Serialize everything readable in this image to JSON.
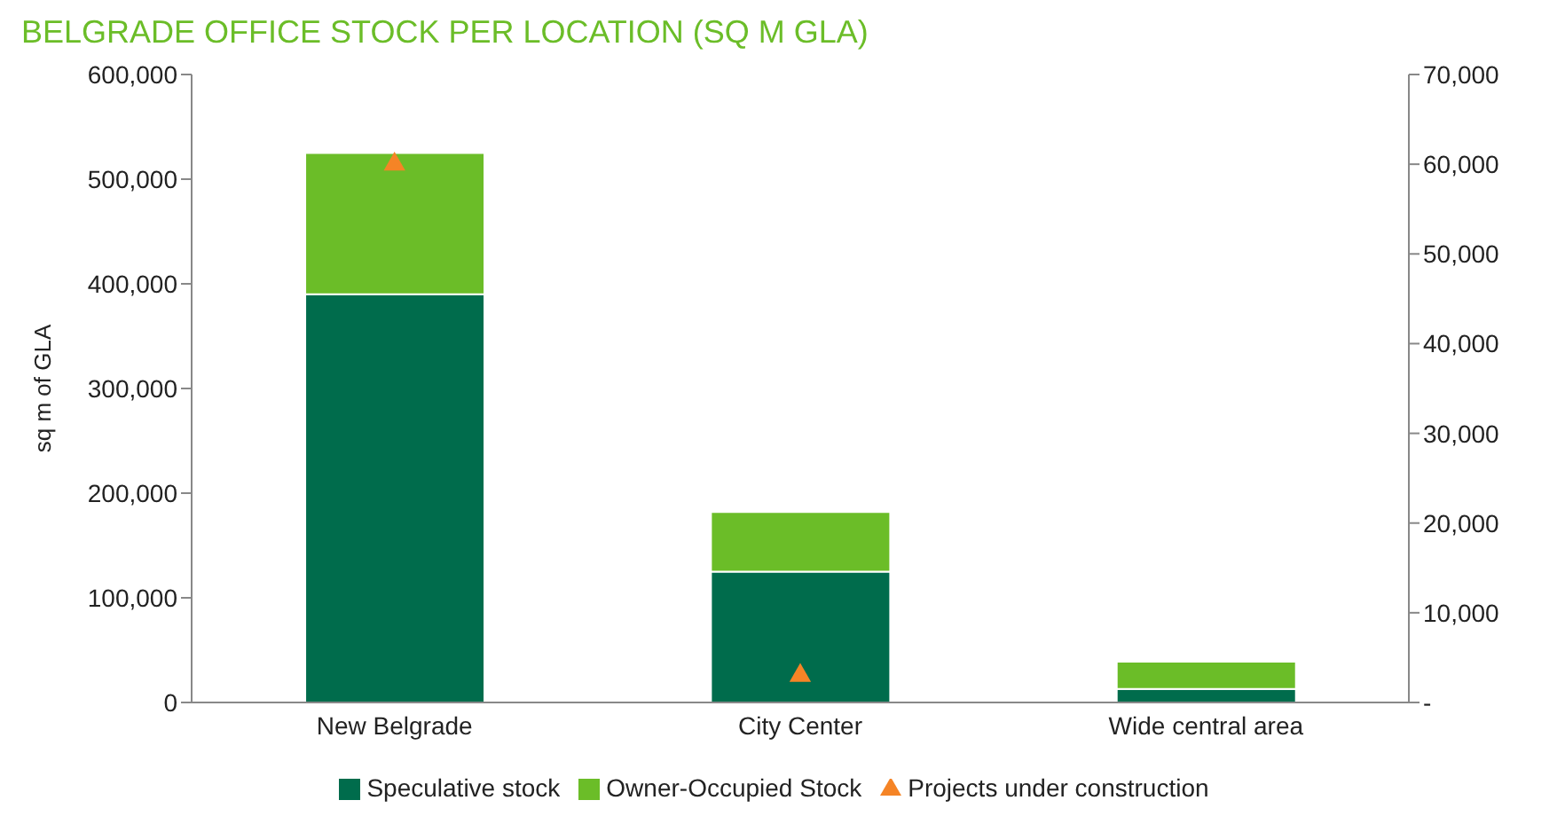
{
  "chart_data": {
    "type": "bar",
    "title": "BELGRADE OFFICE STOCK PER LOCATION (SQ M GLA)",
    "ylabel": "sq m of GLA",
    "categories": [
      "New Belgrade",
      "City Center",
      "Wide central area"
    ],
    "series": [
      {
        "name": "Speculative stock",
        "type": "bar",
        "color": "#006c4c",
        "values": [
          390000,
          125000,
          13000
        ]
      },
      {
        "name": "Owner-Occupied Stock",
        "type": "bar",
        "color": "#6bbd28",
        "values": [
          135000,
          57000,
          26000
        ]
      },
      {
        "name": "Projects under construction",
        "type": "scatter",
        "axis": "y2",
        "color": "#f58426",
        "marker": "triangle",
        "x": [
          "New Belgrade",
          "City Center"
        ],
        "values": [
          60000,
          3000
        ]
      }
    ],
    "stacked": true,
    "ylim": [
      0,
      600000
    ],
    "yticks": [
      0,
      {
        "value": 100000,
        "label": "100,000"
      },
      {
        "value": 200000,
        "label": "200,000"
      },
      {
        "value": 300000,
        "label": "300,000"
      },
      {
        "value": 400000,
        "label": "400,000"
      },
      {
        "value": 500000,
        "label": "500,000"
      },
      {
        "value": 600000,
        "label": "600,000"
      }
    ],
    "y2lim": [
      0,
      70000
    ],
    "y2ticks": [
      {
        "value": 0,
        "label": "-"
      },
      {
        "value": 10000,
        "label": "10,000"
      },
      {
        "value": 20000,
        "label": "20,000"
      },
      {
        "value": 30000,
        "label": "30,000"
      },
      {
        "value": 40000,
        "label": "40,000"
      },
      {
        "value": 50000,
        "label": "50,000"
      },
      {
        "value": 60000,
        "label": "60,000"
      },
      {
        "value": 70000,
        "label": "70,000"
      }
    ],
    "legend": "bottom"
  }
}
